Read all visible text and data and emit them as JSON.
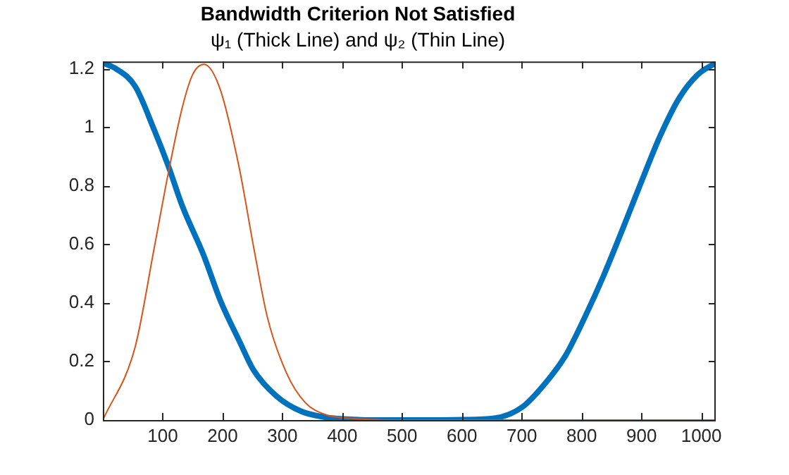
{
  "chart_data": {
    "type": "line",
    "title": "Bandwidth Criterion Not Satisfied",
    "subtitle": "ψ₁ (Thick Line) and ψ₂ (Thin Line)",
    "xlim": [
      0,
      1024
    ],
    "xticks": [
      100,
      200,
      300,
      400,
      500,
      600,
      700,
      800,
      900,
      1000
    ],
    "ylim": [
      0,
      1.225
    ],
    "yticks": [
      0,
      0.2,
      0.4,
      0.6,
      0.8,
      1,
      1.2
    ],
    "grid": false,
    "legend": false,
    "marker": "none",
    "line_style": "solid",
    "series": [
      {
        "color": "#0072bd",
        "x": [
          0,
          22,
          54,
          86,
          109,
          133,
          169,
          196,
          228,
          252,
          291,
          331,
          370,
          410,
          450,
          500,
          550,
          600,
          654,
          702,
          741,
          773,
          805,
          836,
          868,
          899,
          931,
          963,
          994,
          1024
        ],
        "values": [
          1.22,
          1.2,
          1.14,
          0.99,
          0.87,
          0.73,
          0.56,
          0.41,
          0.27,
          0.17,
          0.08,
          0.03,
          0.01,
          0.003,
          0,
          0,
          0,
          0.001,
          0.006,
          0.046,
          0.13,
          0.22,
          0.35,
          0.49,
          0.65,
          0.81,
          0.97,
          1.1,
          1.18,
          1.22
        ]
      },
      {
        "color": "#d95319",
        "x": [
          0,
          54,
          86,
          109,
          133,
          150,
          169,
          196,
          228,
          252,
          275,
          307,
          338,
          370,
          420,
          500,
          600,
          700,
          800,
          900,
          1024
        ],
        "values": [
          0,
          0.25,
          0.59,
          0.84,
          1.07,
          1.18,
          1.215,
          1.13,
          0.86,
          0.59,
          0.35,
          0.16,
          0.06,
          0.02,
          0.005,
          0,
          0,
          0,
          0,
          0,
          0
        ]
      }
    ]
  }
}
